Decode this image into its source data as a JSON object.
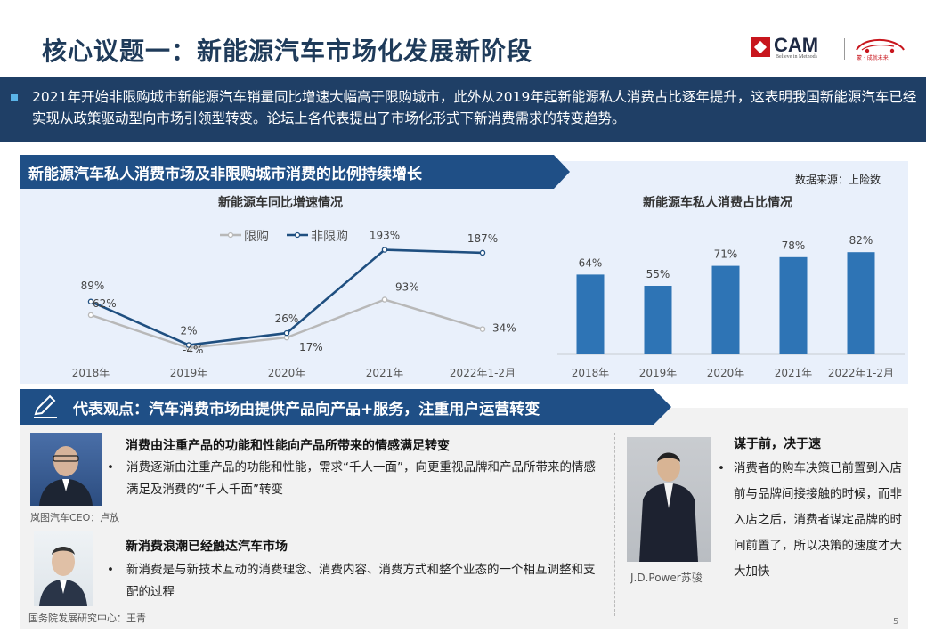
{
  "title": "核心议题一：新能源汽车市场化发展新阶段",
  "logo": {
    "cam_text": "CAM",
    "cam_tagline": "Believe in Methods",
    "car_caption": "蒙 · 成就未来"
  },
  "summary": "2021年开始非限购城市新能源汽车销量同比增速大幅高于限购城市，此外从2019年起新能源私人消费占比逐年提升，这表明我国新能源汽车已经实现从政策驱动型向市场引领型转变。论坛上各代表提出了市场化形式下新消费需求的转变趋势。",
  "section1": {
    "banner": "新能源汽车私人消费市场及非限购城市消费的比例持续增长",
    "source": "数据来源：上险数"
  },
  "section2": {
    "banner": "代表观点：汽车消费市场由提供产品向产品+服务，注重用户运营转变"
  },
  "quotes": [
    {
      "heading": "消费由注重产品的功能和性能向产品所带来的情感满足转变",
      "body": "消费逐渐由注重产品的功能和性能，需求“千人一面”，向更重视品牌和产品所带来的情感满足及消费的“千人千面”转变",
      "caption": "岚图汽车CEO：卢放"
    },
    {
      "heading": "新消费浪潮已经触达汽车市场",
      "body": "新消费是与新技术互动的消费理念、消费内容、消费方式和整个业态的一个相互调整和支配的过程",
      "caption": "国务院发展研究中心：王青"
    },
    {
      "heading": "谋于前，决于速",
      "body": "消费者的购车决策已前置到入店前与品牌间接接触的时候，而非入店之后，消费者谋定品牌的时间前置了，所以决策的速度才大大加快",
      "caption": "J.D.Power苏骏"
    }
  ],
  "bullet": "•",
  "page_number": "5",
  "colors": {
    "navy": "#1f3f66",
    "banner": "#1f4f86",
    "line_nonlimit": "#1f4f80",
    "line_limit": "#b8b8b8",
    "bar": "#2e74b5"
  },
  "chart_data": [
    {
      "type": "line",
      "title": "新能源车同比增速情况",
      "categories": [
        "2018年",
        "2019年",
        "2020年",
        "2021年",
        "2022年1-2月"
      ],
      "series": [
        {
          "name": "限购",
          "values": [
            62,
            -4,
            17,
            93,
            34
          ],
          "labels": [
            "62%",
            "-4%",
            "17%",
            "93%",
            "34%"
          ]
        },
        {
          "name": "非限购",
          "values": [
            89,
            2,
            26,
            193,
            187
          ],
          "labels": [
            "89%",
            "2%",
            "26%",
            "193%",
            "187%"
          ]
        }
      ],
      "legend": "top-left",
      "grid": false
    },
    {
      "type": "bar",
      "title": "新能源车私人消费占比情况",
      "categories": [
        "2018年",
        "2019年",
        "2020年",
        "2021年",
        "2022年1-2月"
      ],
      "values": [
        64,
        55,
        71,
        78,
        82
      ],
      "labels": [
        "64%",
        "55%",
        "71%",
        "78%",
        "82%"
      ],
      "grid": false
    }
  ]
}
